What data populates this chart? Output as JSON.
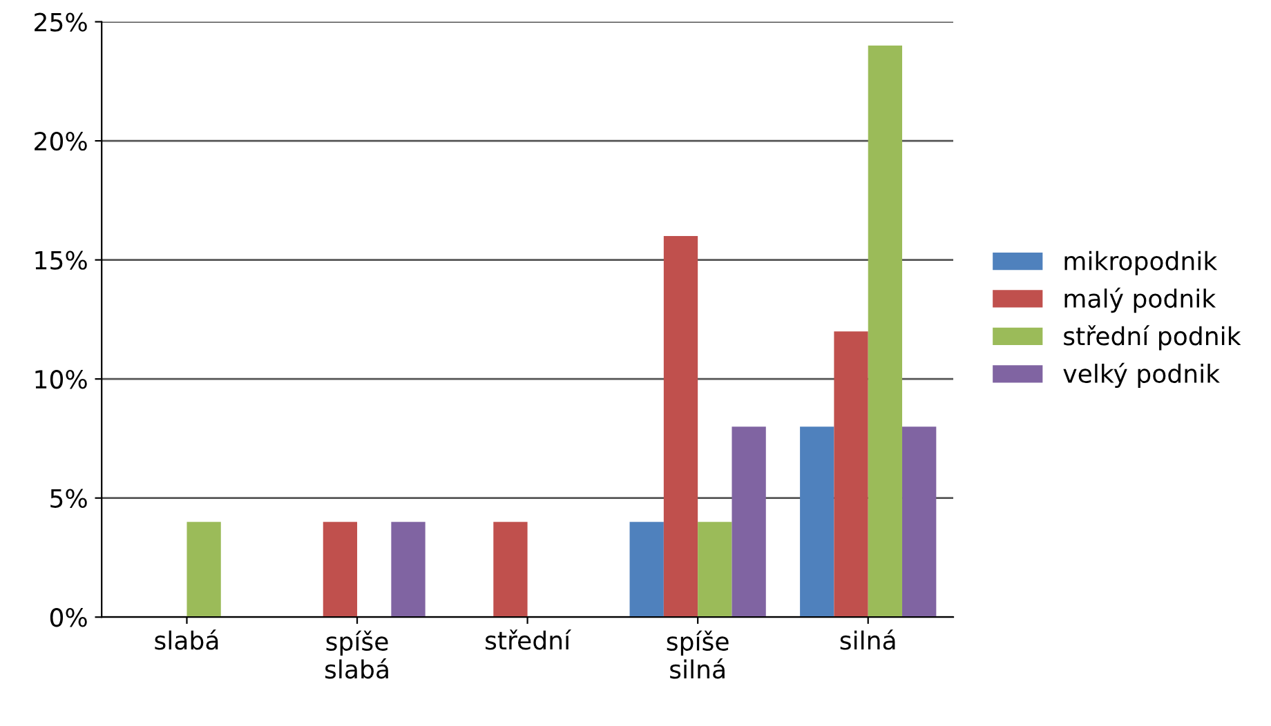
{
  "chart_data": {
    "type": "bar",
    "categories": [
      "slabá",
      "spíše\nslabá",
      "střední",
      "spíše\nsilná",
      "silná"
    ],
    "series": [
      {
        "name": "mikropodnik",
        "color": "#4f81bd",
        "values": [
          0,
          0,
          0,
          4,
          8
        ]
      },
      {
        "name": "malý podnik",
        "color": "#c0504d",
        "values": [
          0,
          4,
          4,
          16,
          12
        ]
      },
      {
        "name": "střední podnik",
        "color": "#9bbb59",
        "values": [
          4,
          0,
          0,
          4,
          24
        ]
      },
      {
        "name": "velký podnik",
        "color": "#8064a2",
        "values": [
          0,
          4,
          0,
          8,
          8
        ]
      }
    ],
    "ylim": [
      0,
      25
    ],
    "yticks": [
      {
        "value": 0,
        "label": "0%"
      },
      {
        "value": 5,
        "label": "5%"
      },
      {
        "value": 10,
        "label": "10%"
      },
      {
        "value": 15,
        "label": "15%"
      },
      {
        "value": 20,
        "label": "20%"
      },
      {
        "value": 25,
        "label": "25%"
      }
    ],
    "grid": "y",
    "legend": "right"
  }
}
